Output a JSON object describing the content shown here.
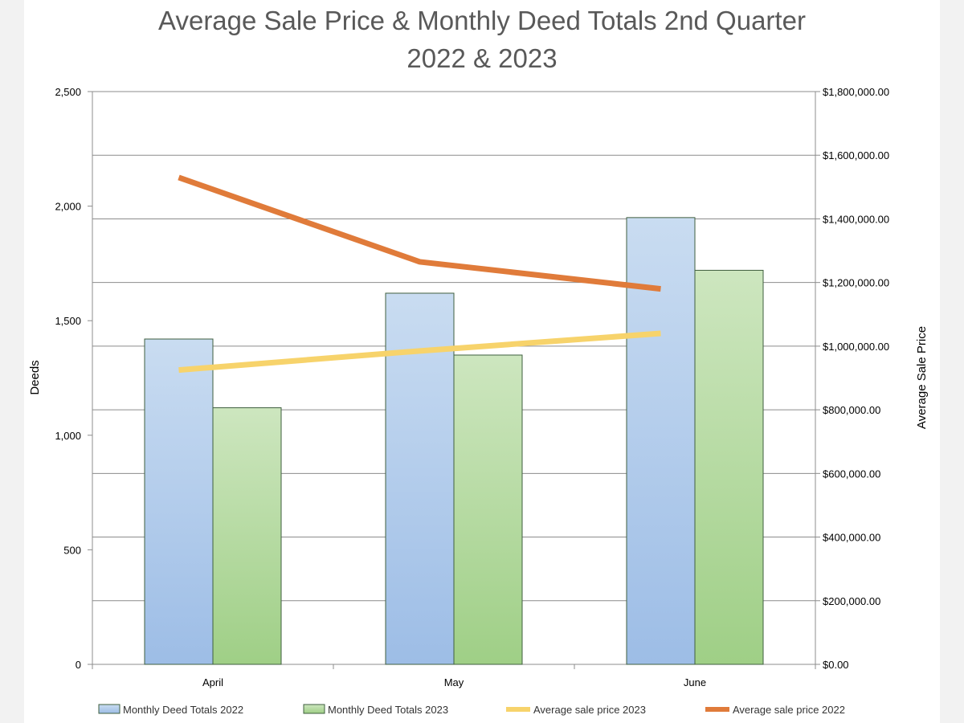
{
  "chart_data": {
    "type": "bar",
    "title_line1": "Average Sale Price & Monthly Deed Totals 2nd Quarter",
    "title_line2": "2022 & 2023",
    "categories": [
      "April",
      "May",
      "June"
    ],
    "ylabel": "Deeds",
    "y2label": "Average Sale Price",
    "ylim": [
      0,
      2500
    ],
    "y2lim": [
      0,
      1800000
    ],
    "yticks": [
      0,
      500,
      1000,
      1500,
      2000,
      2500
    ],
    "ytick_labels": [
      "0",
      "500",
      "1,000",
      "1,500",
      "2,000",
      "2,500"
    ],
    "y2ticks": [
      0,
      200000,
      400000,
      600000,
      800000,
      1000000,
      1200000,
      1400000,
      1600000,
      1800000
    ],
    "y2tick_labels": [
      "$0.00",
      "$200,000.00",
      "$400,000.00",
      "$600,000.00",
      "$800,000.00",
      "$1,000,000.00",
      "$1,200,000.00",
      "$1,400,000.00",
      "$1,600,000.00",
      "$1,800,000.00"
    ],
    "series": [
      {
        "name": "Monthly Deed Totals 2022",
        "kind": "bar",
        "axis": "left",
        "values": [
          1420,
          1620,
          1950
        ],
        "color": "#a9c4e8"
      },
      {
        "name": "Monthly Deed Totals 2023",
        "kind": "bar",
        "axis": "left",
        "values": [
          1120,
          1350,
          1720
        ],
        "color": "#b4d99e"
      },
      {
        "name": "Average sale price 2023",
        "kind": "line",
        "axis": "right",
        "values": [
          925000,
          985000,
          1040000
        ],
        "color": "#f7d36b"
      },
      {
        "name": "Average sale price 2022",
        "kind": "line",
        "axis": "right",
        "values": [
          1530000,
          1265000,
          1180000
        ],
        "color": "#e07b3a"
      }
    ],
    "legend_position": "bottom",
    "grid": true
  }
}
